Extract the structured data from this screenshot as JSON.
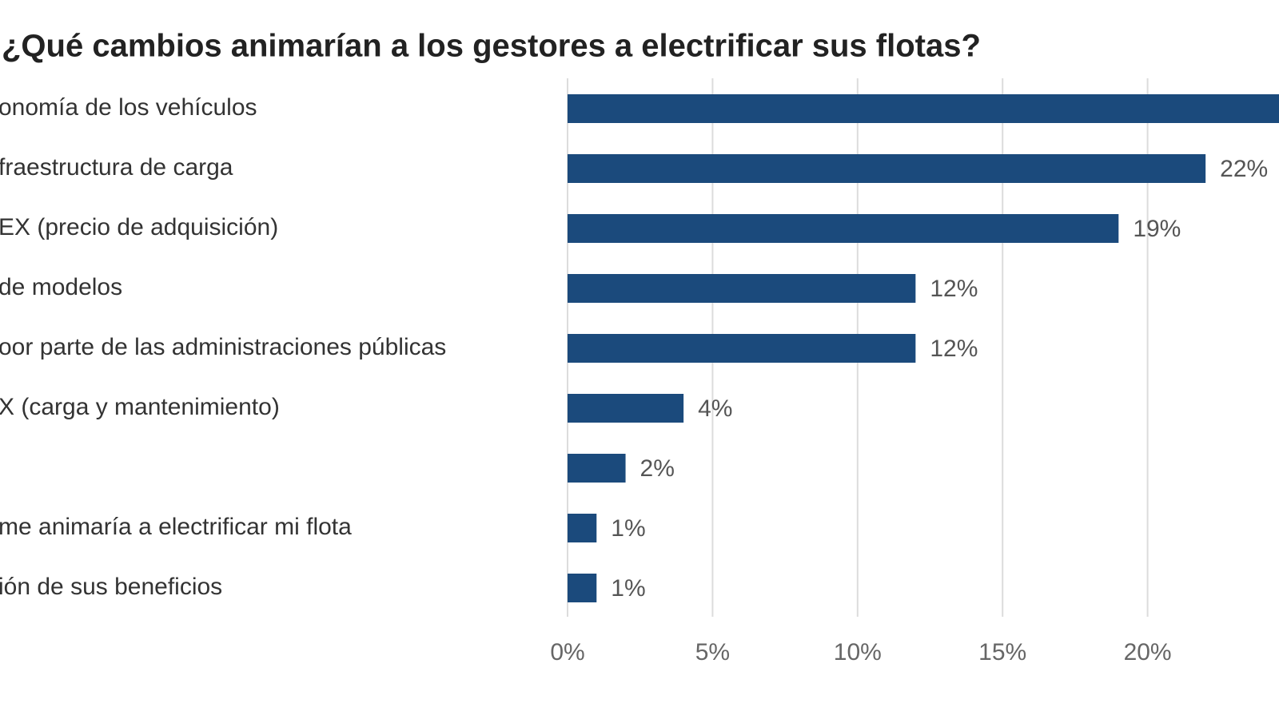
{
  "chart_data": {
    "type": "barh",
    "title": "¿Qué cambios animarían a los gestores a electrificar sus flotas?",
    "categories": [
      "onomía de los vehículos",
      "fraestructura de carga",
      "EX (precio de adquisición)",
      "de modelos",
      "oor parte de las administraciones públicas",
      "X (carga y mantenimiento)",
      null,
      "me animaría a electrificar mi flota",
      "ión de sus beneficios"
    ],
    "values": [
      25,
      22,
      19,
      12,
      12,
      4,
      2,
      1,
      1
    ],
    "value_labels": [
      null,
      "22%",
      "19%",
      "12%",
      "12%",
      "4%",
      "2%",
      "1%",
      "1%"
    ],
    "color": "#1b4a7c",
    "xlim": [
      0,
      25
    ],
    "xticks": [
      {
        "value": 0,
        "label": "0%"
      },
      {
        "value": 5,
        "label": "5%"
      },
      {
        "value": 10,
        "label": "10%"
      },
      {
        "value": 15,
        "label": "15%"
      },
      {
        "value": 20,
        "label": "20%"
      }
    ],
    "grid": true
  }
}
